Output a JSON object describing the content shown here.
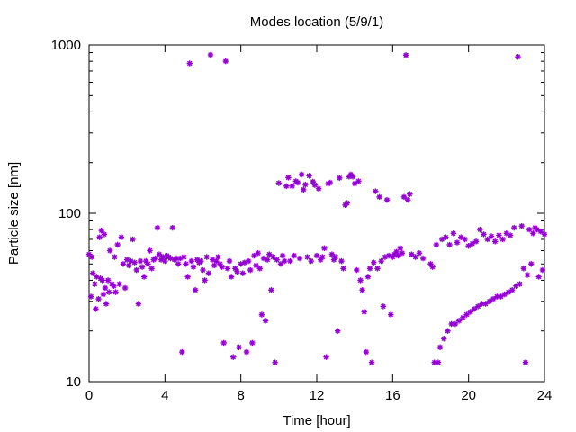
{
  "chart_data": {
    "type": "scatter",
    "title": "Modes location (5/9/1)",
    "xlabel": "Time [hour]",
    "ylabel": "Particle size [nm]",
    "xlim": [
      0,
      24
    ],
    "ylim": [
      10,
      1000
    ],
    "yscale": "log",
    "xticks": [
      0,
      4,
      8,
      12,
      16,
      20,
      24
    ],
    "xtick_labels": [
      "0",
      "4",
      "8",
      "12",
      "16",
      "20",
      "24"
    ],
    "yticks": [
      10,
      100,
      1000
    ],
    "ytick_labels": [
      "10",
      "100",
      "1000"
    ],
    "grid": false,
    "legend": "none",
    "marker_color": "#9400d3",
    "series": [
      {
        "points": [
          [
            0.0,
            57
          ],
          [
            0.1,
            32
          ],
          [
            0.15,
            55
          ],
          [
            0.2,
            44
          ],
          [
            0.3,
            38
          ],
          [
            0.35,
            27
          ],
          [
            0.4,
            42
          ],
          [
            0.5,
            31
          ],
          [
            0.55,
            72
          ],
          [
            0.6,
            41
          ],
          [
            0.65,
            79
          ],
          [
            0.7,
            40
          ],
          [
            0.75,
            33
          ],
          [
            0.8,
            75
          ],
          [
            0.85,
            36
          ],
          [
            0.9,
            29
          ],
          [
            1.0,
            40
          ],
          [
            1.05,
            34
          ],
          [
            1.1,
            60
          ],
          [
            1.2,
            38
          ],
          [
            1.3,
            37
          ],
          [
            1.35,
            55
          ],
          [
            1.4,
            34
          ],
          [
            1.5,
            65
          ],
          [
            1.6,
            38
          ],
          [
            1.7,
            72
          ],
          [
            1.8,
            50
          ],
          [
            1.9,
            36
          ],
          [
            2.0,
            53
          ],
          [
            2.1,
            49
          ],
          [
            2.2,
            52
          ],
          [
            2.3,
            70
          ],
          [
            2.4,
            51
          ],
          [
            2.5,
            46
          ],
          [
            2.6,
            29
          ],
          [
            2.7,
            52
          ],
          [
            2.8,
            48
          ],
          [
            2.9,
            42
          ],
          [
            3.0,
            52
          ],
          [
            3.1,
            50
          ],
          [
            3.2,
            60
          ],
          [
            3.3,
            47
          ],
          [
            3.4,
            53
          ],
          [
            3.5,
            54
          ],
          [
            3.6,
            82
          ],
          [
            3.7,
            57
          ],
          [
            3.8,
            53
          ],
          [
            3.9,
            55
          ],
          [
            4.0,
            52
          ],
          [
            4.1,
            56
          ],
          [
            4.2,
            55
          ],
          [
            4.3,
            54
          ],
          [
            4.4,
            82
          ],
          [
            4.5,
            53
          ],
          [
            4.6,
            54
          ],
          [
            4.7,
            50
          ],
          [
            4.8,
            54
          ],
          [
            4.9,
            15
          ],
          [
            5.0,
            55
          ],
          [
            5.1,
            50
          ],
          [
            5.2,
            42
          ],
          [
            5.3,
            777
          ],
          [
            5.4,
            52
          ],
          [
            5.5,
            48
          ],
          [
            5.6,
            35
          ],
          [
            5.7,
            53
          ],
          [
            5.8,
            51
          ],
          [
            5.9,
            52
          ],
          [
            6.0,
            46
          ],
          [
            6.1,
            40
          ],
          [
            6.2,
            55
          ],
          [
            6.3,
            44
          ],
          [
            6.4,
            874
          ],
          [
            6.5,
            53
          ],
          [
            6.6,
            49
          ],
          [
            6.7,
            52
          ],
          [
            6.8,
            55
          ],
          [
            6.9,
            50
          ],
          [
            7.0,
            48
          ],
          [
            7.1,
            17
          ],
          [
            7.2,
            800
          ],
          [
            7.3,
            47
          ],
          [
            7.4,
            52
          ],
          [
            7.5,
            42
          ],
          [
            7.6,
            14
          ],
          [
            7.7,
            47
          ],
          [
            7.8,
            45
          ],
          [
            7.9,
            16
          ],
          [
            8.0,
            50
          ],
          [
            8.1,
            44
          ],
          [
            8.2,
            51
          ],
          [
            8.3,
            15
          ],
          [
            8.4,
            52
          ],
          [
            8.5,
            46
          ],
          [
            8.6,
            17
          ],
          [
            8.7,
            56
          ],
          [
            8.8,
            49
          ],
          [
            8.9,
            58
          ],
          [
            9.0,
            47
          ],
          [
            9.1,
            25
          ],
          [
            9.2,
            54
          ],
          [
            9.3,
            23
          ],
          [
            9.4,
            53
          ],
          [
            9.5,
            57
          ],
          [
            9.6,
            35
          ],
          [
            9.7,
            55
          ],
          [
            9.8,
            13
          ],
          [
            9.9,
            53
          ],
          [
            10.0,
            151
          ],
          [
            10.1,
            50
          ],
          [
            10.2,
            56
          ],
          [
            10.3,
            52
          ],
          [
            10.4,
            145
          ],
          [
            10.5,
            163
          ],
          [
            10.6,
            52
          ],
          [
            10.7,
            145
          ],
          [
            10.8,
            56
          ],
          [
            10.9,
            155
          ],
          [
            11.0,
            152
          ],
          [
            11.1,
            54
          ],
          [
            11.2,
            170
          ],
          [
            11.3,
            138
          ],
          [
            11.4,
            148
          ],
          [
            11.5,
            55
          ],
          [
            11.6,
            167
          ],
          [
            11.7,
            52
          ],
          [
            11.8,
            154
          ],
          [
            11.9,
            147
          ],
          [
            12.0,
            56
          ],
          [
            12.1,
            140
          ],
          [
            12.2,
            53
          ],
          [
            12.3,
            55
          ],
          [
            12.4,
            62
          ],
          [
            12.5,
            14
          ],
          [
            12.6,
            150
          ],
          [
            12.7,
            152
          ],
          [
            12.8,
            57
          ],
          [
            12.9,
            53
          ],
          [
            13.0,
            55
          ],
          [
            13.1,
            20
          ],
          [
            13.2,
            162
          ],
          [
            13.3,
            52
          ],
          [
            13.4,
            47
          ],
          [
            13.5,
            112
          ],
          [
            13.6,
            115
          ],
          [
            13.7,
            165
          ],
          [
            13.8,
            170
          ],
          [
            13.9,
            165
          ],
          [
            14.0,
            150
          ],
          [
            14.1,
            46
          ],
          [
            14.2,
            155
          ],
          [
            14.3,
            40
          ],
          [
            14.4,
            35
          ],
          [
            14.5,
            26
          ],
          [
            14.6,
            15
          ],
          [
            14.7,
            42
          ],
          [
            14.8,
            47
          ],
          [
            14.9,
            13
          ],
          [
            15.0,
            51
          ],
          [
            15.1,
            135
          ],
          [
            15.2,
            47
          ],
          [
            15.3,
            125
          ],
          [
            15.4,
            52
          ],
          [
            15.5,
            28
          ],
          [
            15.6,
            55
          ],
          [
            15.7,
            120
          ],
          [
            15.8,
            56
          ],
          [
            15.9,
            25
          ],
          [
            16.0,
            55
          ],
          [
            16.1,
            57
          ],
          [
            16.2,
            59
          ],
          [
            16.3,
            56
          ],
          [
            16.4,
            62
          ],
          [
            16.5,
            58
          ],
          [
            16.6,
            125
          ],
          [
            16.7,
            870
          ],
          [
            16.8,
            120
          ],
          [
            16.9,
            130
          ],
          [
            17.0,
            57
          ],
          [
            17.2,
            55
          ],
          [
            17.4,
            58
          ],
          [
            17.6,
            54
          ],
          [
            18.0,
            50
          ],
          [
            18.1,
            48
          ],
          [
            18.2,
            13
          ],
          [
            18.3,
            65
          ],
          [
            18.4,
            13
          ],
          [
            18.5,
            16
          ],
          [
            18.6,
            70
          ],
          [
            18.7,
            18
          ],
          [
            18.8,
            72
          ],
          [
            18.9,
            20
          ],
          [
            19.0,
            65
          ],
          [
            19.1,
            22
          ],
          [
            19.2,
            76
          ],
          [
            19.3,
            22
          ],
          [
            19.4,
            67
          ],
          [
            19.5,
            23
          ],
          [
            19.6,
            72
          ],
          [
            19.7,
            24
          ],
          [
            19.8,
            70
          ],
          [
            19.9,
            25
          ],
          [
            20.0,
            64
          ],
          [
            20.1,
            26
          ],
          [
            20.2,
            66
          ],
          [
            20.3,
            27
          ],
          [
            20.4,
            68
          ],
          [
            20.5,
            28
          ],
          [
            20.6,
            80
          ],
          [
            20.7,
            29
          ],
          [
            20.8,
            75
          ],
          [
            20.9,
            29
          ],
          [
            21.0,
            70
          ],
          [
            21.1,
            30
          ],
          [
            21.2,
            73
          ],
          [
            21.3,
            31
          ],
          [
            21.4,
            68
          ],
          [
            21.5,
            32
          ],
          [
            21.6,
            74
          ],
          [
            21.7,
            32
          ],
          [
            21.8,
            70
          ],
          [
            21.9,
            33
          ],
          [
            22.0,
            76
          ],
          [
            22.1,
            34
          ],
          [
            22.2,
            74
          ],
          [
            22.3,
            35
          ],
          [
            22.4,
            82
          ],
          [
            22.5,
            37
          ],
          [
            22.6,
            850
          ],
          [
            22.7,
            38
          ],
          [
            22.8,
            84
          ],
          [
            22.9,
            47
          ],
          [
            23.0,
            13
          ],
          [
            23.1,
            43
          ],
          [
            23.2,
            80
          ],
          [
            23.3,
            50
          ],
          [
            23.4,
            76
          ],
          [
            23.5,
            82
          ],
          [
            23.6,
            80
          ],
          [
            23.7,
            42
          ],
          [
            23.8,
            78
          ],
          [
            23.9,
            46
          ],
          [
            24.0,
            75
          ]
        ]
      }
    ]
  }
}
